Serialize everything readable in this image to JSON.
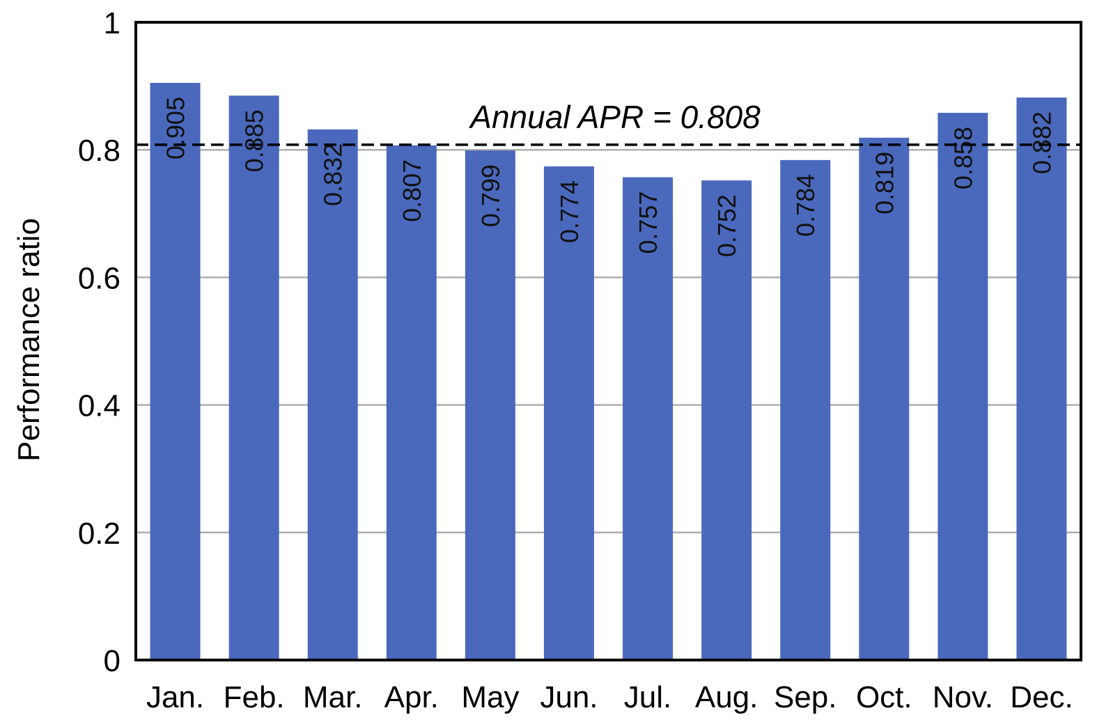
{
  "chart_data": {
    "type": "bar",
    "ylabel": "Performance ratio",
    "xlabel": "",
    "ylim": [
      0,
      1
    ],
    "yticks": [
      0,
      0.2,
      0.4,
      0.6,
      0.8,
      1
    ],
    "ytick_labels": [
      "0",
      "0.2",
      "0.4",
      "0.6",
      "0.8",
      "1"
    ],
    "grid": true,
    "categories": [
      "Jan.",
      "Feb.",
      "Mar.",
      "Apr.",
      "May",
      "Jun.",
      "Jul.",
      "Aug.",
      "Sep.",
      "Oct.",
      "Nov.",
      "Dec."
    ],
    "values": [
      0.905,
      0.885,
      0.832,
      0.807,
      0.799,
      0.774,
      0.757,
      0.752,
      0.784,
      0.819,
      0.858,
      0.882
    ],
    "value_labels": [
      "0.905",
      "0.885",
      "0.832",
      "0.807",
      "0.799",
      "0.774",
      "0.757",
      "0.752",
      "0.784",
      "0.819",
      "0.858",
      "0.882"
    ],
    "reference_line": {
      "value": 0.808,
      "label": "Annual APR = 0.808",
      "style": "dashed"
    },
    "colors": {
      "bar": "#4a69bd",
      "grid": "#b0adad",
      "axis": "#000000"
    }
  }
}
